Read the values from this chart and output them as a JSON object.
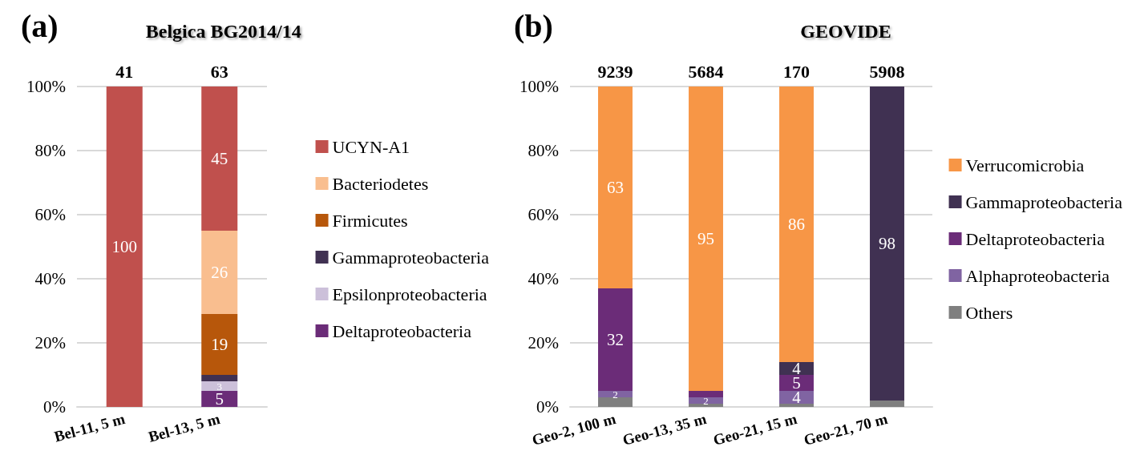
{
  "chart_data": [
    {
      "type": "bar",
      "stacked": true,
      "title": "Belgica BG2014/14",
      "annotations": [
        "(a)",
        "41",
        "63"
      ],
      "categories": [
        "Bel-11, 5 m",
        "Bel-13, 5 m"
      ],
      "ylim": [
        0,
        100
      ],
      "yticks": [
        {
          "value": 0,
          "label": "0%"
        },
        {
          "value": 20,
          "label": "20%"
        },
        {
          "value": 40,
          "label": "40%"
        },
        {
          "value": 60,
          "label": "60%"
        },
        {
          "value": 80,
          "label": "80%"
        },
        {
          "value": 100,
          "label": "100%"
        }
      ],
      "grid": "y",
      "legend": "right",
      "series": [
        {
          "name": "Deltaproteobacteria",
          "color": "#6b2c78",
          "values": [
            null,
            5
          ],
          "value_labels": [
            null,
            "5"
          ]
        },
        {
          "name": "Epsilonproteobacteria",
          "color": "#ccc0da",
          "values": [
            null,
            3
          ],
          "value_labels": [
            null,
            "3"
          ]
        },
        {
          "name": "Gammaproteobacteria",
          "color": "#403152",
          "values": [
            null,
            2
          ],
          "value_labels": [
            null,
            null
          ]
        },
        {
          "name": "Firmicutes",
          "color": "#b7570b",
          "values": [
            null,
            19
          ],
          "value_labels": [
            null,
            "19"
          ]
        },
        {
          "name": "Bacteriodetes",
          "color": "#f9be8f",
          "values": [
            null,
            26
          ],
          "value_labels": [
            null,
            "26"
          ]
        },
        {
          "name": "UCYN-A1",
          "color": "#c0504d",
          "values": [
            100,
            45
          ],
          "value_labels": [
            "100",
            "45"
          ]
        }
      ]
    },
    {
      "type": "bar",
      "stacked": true,
      "title": "GEOVIDE",
      "annotations": [
        "(b)",
        "9239",
        "5684",
        "170",
        "5908"
      ],
      "categories": [
        "Geo-2, 100 m",
        "Geo-13, 35 m",
        "Geo-21, 15 m",
        "Geo-21, 70 m"
      ],
      "ylim": [
        0,
        100
      ],
      "yticks": [
        {
          "value": 0,
          "label": "0%"
        },
        {
          "value": 20,
          "label": "20%"
        },
        {
          "value": 40,
          "label": "40%"
        },
        {
          "value": 60,
          "label": "60%"
        },
        {
          "value": 80,
          "label": "80%"
        },
        {
          "value": 100,
          "label": "100%"
        }
      ],
      "grid": "y",
      "legend": "right",
      "series": [
        {
          "name": "Others",
          "color": "#7f7f7f",
          "values": [
            3,
            1,
            1,
            2
          ],
          "value_labels": [
            null,
            null,
            null,
            null
          ]
        },
        {
          "name": "Alphaproteobacteria",
          "color": "#8064a2",
          "values": [
            2,
            2,
            4,
            null
          ],
          "value_labels": [
            "2",
            "2",
            "4",
            null
          ]
        },
        {
          "name": "Deltaproteobacteria",
          "color": "#6b2c78",
          "values": [
            32,
            2,
            5,
            null
          ],
          "value_labels": [
            "32",
            null,
            "5",
            null
          ]
        },
        {
          "name": "Gammaproteobacteria",
          "color": "#403152",
          "values": [
            null,
            null,
            4,
            98
          ],
          "value_labels": [
            null,
            null,
            "4",
            "98"
          ]
        },
        {
          "name": "Verrucomicrobia",
          "color": "#f79646",
          "values": [
            63,
            95,
            86,
            null
          ],
          "value_labels": [
            "63",
            "95",
            "86",
            null
          ]
        }
      ]
    }
  ]
}
